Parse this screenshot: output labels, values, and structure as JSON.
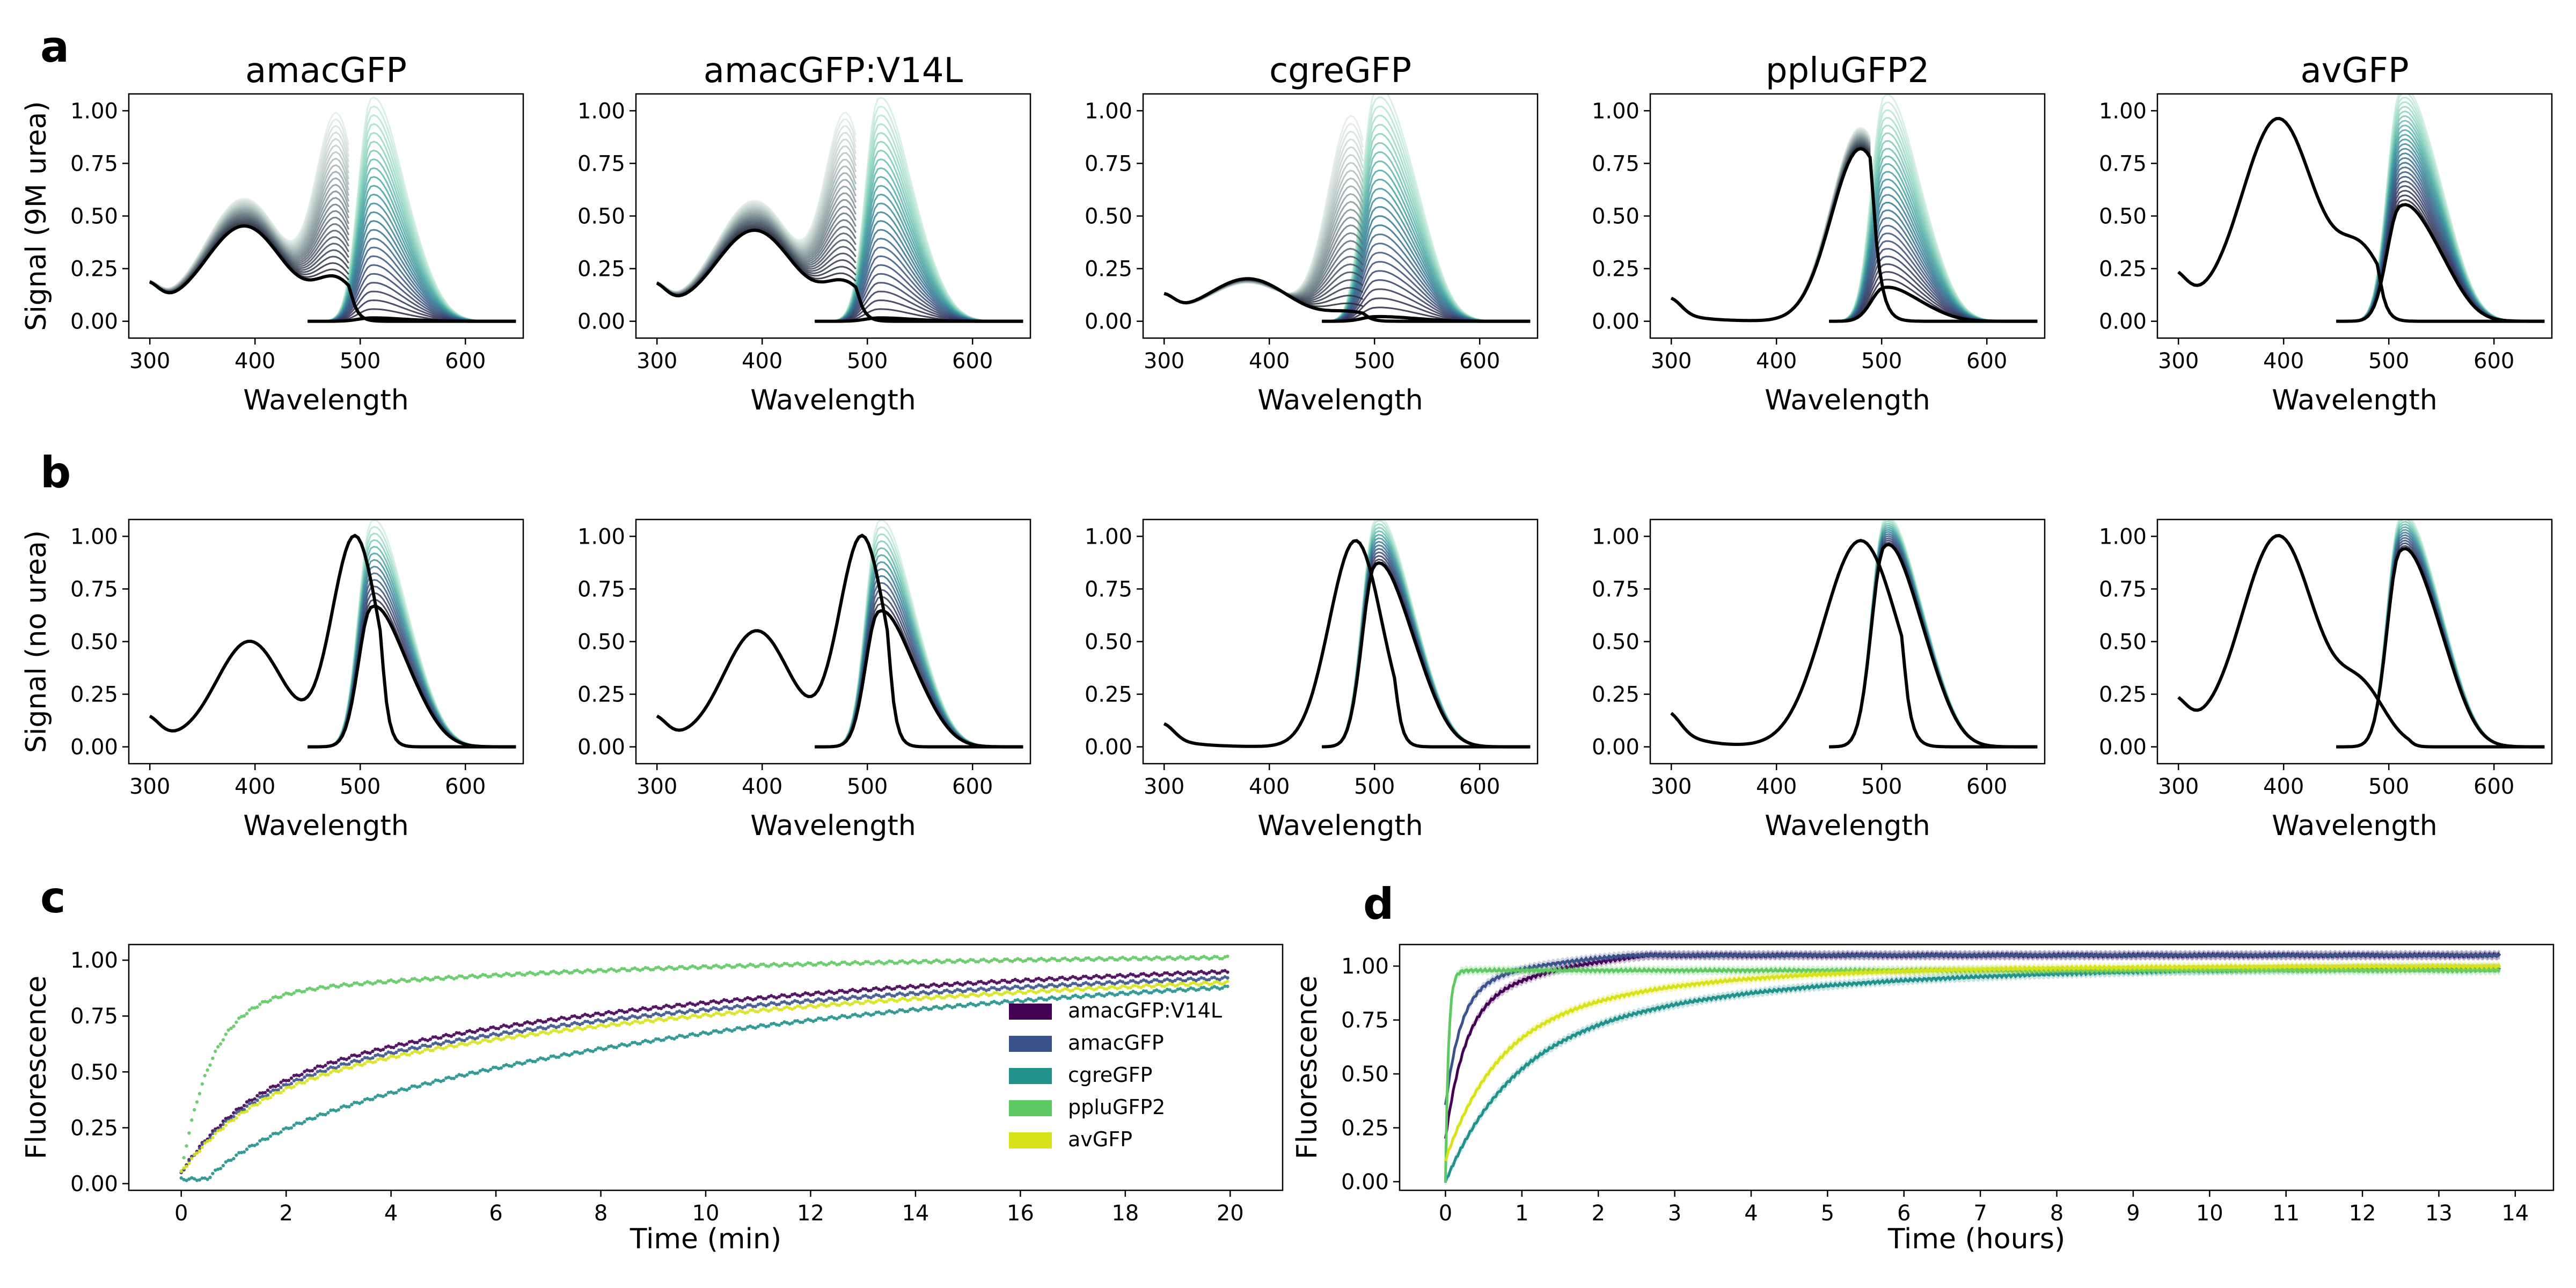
{
  "panel_letters": [
    "a",
    "b",
    "c",
    "d"
  ],
  "colors": {
    "amacGFP:V14L": "#440154",
    "amacGFP": "#3b528b",
    "cgreGFP": "#21918c",
    "ppluGFP2": "#5ec962",
    "avGFP": "#d8e219",
    "final_trace": "#000000",
    "colormap": "mako_r"
  },
  "chart_data": [
    {
      "panel": "a",
      "type": "line",
      "title": "amacGFP",
      "xlabel": "Wavelength",
      "ylabel": "Signal (9M urea)",
      "xlim": [
        280,
        655
      ],
      "ylim": [
        -0.08,
        1.08
      ],
      "xticks": [
        300,
        400,
        500,
        600
      ],
      "yticks": [
        0.0,
        0.25,
        0.5,
        0.75,
        1.0
      ],
      "ytick_labels": [
        "0.00",
        "0.25",
        "0.50",
        "0.75",
        "1.00"
      ],
      "absorbance_peaks": [
        {
          "wl": 390,
          "start": 0.58,
          "end": 0.45,
          "w": 38
        },
        {
          "wl": 478,
          "start": 0.95,
          "end": 0.18,
          "w": 20
        }
      ],
      "absorbance_baseline": 0.1,
      "emission": {
        "peak_wl": 510,
        "start": 1.0,
        "end": 0.015,
        "shoulder": 0.25
      }
    },
    {
      "panel": "a",
      "type": "line",
      "title": "amacGFP:V14L",
      "xlabel": "Wavelength",
      "ylabel": "",
      "xlim": [
        280,
        655
      ],
      "ylim": [
        -0.08,
        1.08
      ],
      "xticks": [
        300,
        400,
        500,
        600
      ],
      "yticks": [
        0.0,
        0.25,
        0.5,
        0.75,
        1.0
      ],
      "ytick_labels": [
        "0.00",
        "0.25",
        "0.50",
        "0.75",
        "1.00"
      ],
      "absorbance_peaks": [
        {
          "wl": 393,
          "start": 0.57,
          "end": 0.43,
          "w": 38
        },
        {
          "wl": 480,
          "start": 0.95,
          "end": 0.16,
          "w": 20
        }
      ],
      "absorbance_baseline": 0.1,
      "emission": {
        "peak_wl": 510,
        "start": 1.0,
        "end": 0.015,
        "shoulder": 0.25
      }
    },
    {
      "panel": "a",
      "type": "line",
      "title": "cgreGFP",
      "xlabel": "Wavelength",
      "ylabel": "",
      "xlim": [
        280,
        655
      ],
      "ylim": [
        -0.08,
        1.08
      ],
      "xticks": [
        300,
        400,
        500,
        600
      ],
      "yticks": [
        0.0,
        0.25,
        0.5,
        0.75,
        1.0
      ],
      "ytick_labels": [
        "0.00",
        "0.25",
        "0.50",
        "0.75",
        "1.00"
      ],
      "absorbance_peaks": [
        {
          "wl": 380,
          "start": 0.18,
          "end": 0.2,
          "w": 38
        },
        {
          "wl": 478,
          "start": 0.97,
          "end": 0.04,
          "w": 22
        }
      ],
      "absorbance_baseline": 0.05,
      "emission": {
        "peak_wl": 500,
        "start": 1.0,
        "end": 0.02,
        "shoulder": 0.4
      }
    },
    {
      "panel": "a",
      "type": "line",
      "title": "ppluGFP2",
      "xlabel": "Wavelength",
      "ylabel": "",
      "xlim": [
        280,
        655
      ],
      "ylim": [
        -0.08,
        1.08
      ],
      "xticks": [
        300,
        400,
        500,
        600
      ],
      "yticks": [
        0.0,
        0.25,
        0.5,
        0.75,
        1.0
      ],
      "ytick_labels": [
        "0.00",
        "0.25",
        "0.50",
        "0.75",
        "1.00"
      ],
      "absorbance_peaks": [
        {
          "wl": 480,
          "start": 0.92,
          "end": 0.82,
          "w": 28
        }
      ],
      "absorbance_baseline": 0.05,
      "emission": {
        "peak_wl": 502,
        "start": 1.0,
        "end": 0.15,
        "shoulder": 0.3
      }
    },
    {
      "panel": "a",
      "type": "line",
      "title": "avGFP",
      "xlabel": "Wavelength",
      "ylabel": "",
      "xlim": [
        280,
        655
      ],
      "ylim": [
        -0.08,
        1.08
      ],
      "xticks": [
        300,
        400,
        500,
        600
      ],
      "yticks": [
        0.0,
        0.25,
        0.5,
        0.75,
        1.0
      ],
      "ytick_labels": [
        "0.00",
        "0.25",
        "0.50",
        "0.75",
        "1.00"
      ],
      "absorbance_peaks": [
        {
          "wl": 395,
          "start": 0.96,
          "end": 0.96,
          "w": 35
        },
        {
          "wl": 475,
          "start": 0.3,
          "end": 0.3,
          "w": 22
        }
      ],
      "absorbance_baseline": 0.15,
      "emission": {
        "peak_wl": 510,
        "start": 1.0,
        "end": 0.5,
        "shoulder": 0.4
      }
    },
    {
      "panel": "b",
      "type": "line",
      "title": "",
      "xlabel": "Wavelength",
      "ylabel": "Signal (no urea)",
      "xlim": [
        280,
        655
      ],
      "ylim": [
        -0.08,
        1.08
      ],
      "xticks": [
        300,
        400,
        500,
        600
      ],
      "yticks": [
        0.0,
        0.25,
        0.5,
        0.75,
        1.0
      ],
      "ytick_labels": [
        "0.00",
        "0.25",
        "0.50",
        "0.75",
        "1.00"
      ],
      "absorbance_peaks": [
        {
          "wl": 395,
          "start": 0.5,
          "end": 0.5,
          "w": 32
        },
        {
          "wl": 495,
          "start": 1.0,
          "end": 1.0,
          "w": 22
        }
      ],
      "absorbance_baseline": 0.08,
      "emission": {
        "peak_wl": 510,
        "start": 1.0,
        "end": 0.62,
        "shoulder": 0.3
      }
    },
    {
      "panel": "b",
      "type": "line",
      "title": "",
      "xlabel": "Wavelength",
      "ylabel": "",
      "xlim": [
        280,
        655
      ],
      "ylim": [
        -0.08,
        1.08
      ],
      "xticks": [
        300,
        400,
        500,
        600
      ],
      "yticks": [
        0.0,
        0.25,
        0.5,
        0.75,
        1.0
      ],
      "ytick_labels": [
        "0.00",
        "0.25",
        "0.50",
        "0.75",
        "1.00"
      ],
      "absorbance_peaks": [
        {
          "wl": 395,
          "start": 0.55,
          "end": 0.55,
          "w": 32
        },
        {
          "wl": 495,
          "start": 1.0,
          "end": 1.0,
          "w": 22
        }
      ],
      "absorbance_baseline": 0.08,
      "emission": {
        "peak_wl": 510,
        "start": 1.0,
        "end": 0.6,
        "shoulder": 0.3
      }
    },
    {
      "panel": "b",
      "type": "line",
      "title": "",
      "xlabel": "Wavelength",
      "ylabel": "",
      "xlim": [
        280,
        655
      ],
      "ylim": [
        -0.08,
        1.08
      ],
      "xticks": [
        300,
        400,
        500,
        600
      ],
      "yticks": [
        0.0,
        0.25,
        0.5,
        0.75,
        1.0
      ],
      "ytick_labels": [
        "0.00",
        "0.25",
        "0.50",
        "0.75",
        "1.00"
      ],
      "absorbance_peaks": [
        {
          "wl": 482,
          "start": 0.98,
          "end": 0.98,
          "w": 25
        }
      ],
      "absorbance_baseline": 0.05,
      "emission": {
        "peak_wl": 500,
        "start": 1.0,
        "end": 0.8,
        "shoulder": 0.35
      }
    },
    {
      "panel": "b",
      "type": "line",
      "title": "",
      "xlabel": "Wavelength",
      "ylabel": "",
      "xlim": [
        280,
        655
      ],
      "ylim": [
        -0.08,
        1.08
      ],
      "xticks": [
        300,
        400,
        500,
        600
      ],
      "yticks": [
        0.0,
        0.25,
        0.5,
        0.75,
        1.0
      ],
      "ytick_labels": [
        "0.00",
        "0.25",
        "0.50",
        "0.75",
        "1.00"
      ],
      "absorbance_peaks": [
        {
          "wl": 480,
          "start": 0.98,
          "end": 0.98,
          "w": 35
        }
      ],
      "absorbance_baseline": 0.1,
      "emission": {
        "peak_wl": 502,
        "start": 1.0,
        "end": 0.88,
        "shoulder": 0.35
      }
    },
    {
      "panel": "b",
      "type": "line",
      "title": "",
      "xlabel": "Wavelength",
      "ylabel": "",
      "xlim": [
        280,
        655
      ],
      "ylim": [
        -0.08,
        1.08
      ],
      "xticks": [
        300,
        400,
        500,
        600
      ],
      "yticks": [
        0.0,
        0.25,
        0.5,
        0.75,
        1.0
      ],
      "ytick_labels": [
        "0.00",
        "0.25",
        "0.50",
        "0.75",
        "1.00"
      ],
      "absorbance_peaks": [
        {
          "wl": 395,
          "start": 1.0,
          "end": 1.0,
          "w": 35
        },
        {
          "wl": 475,
          "start": 0.25,
          "end": 0.25,
          "w": 22
        }
      ],
      "absorbance_baseline": 0.15,
      "emission": {
        "peak_wl": 510,
        "start": 1.0,
        "end": 0.85,
        "shoulder": 0.4
      }
    },
    {
      "panel": "c",
      "type": "scatter",
      "title": "",
      "xlabel": "Time (min)",
      "ylabel": "Fluorescence",
      "xlim": [
        -1,
        21
      ],
      "ylim": [
        -0.03,
        1.07
      ],
      "xticks": [
        0,
        2,
        4,
        6,
        8,
        10,
        12,
        14,
        16,
        18,
        20
      ],
      "yticks": [
        0.0,
        0.25,
        0.5,
        0.75,
        1.0
      ],
      "ytick_labels": [
        "0.00",
        "0.25",
        "0.50",
        "0.75",
        "1.00"
      ],
      "legend_position": "right",
      "series": [
        {
          "name": "amacGFP:V14L",
          "start": 0.05,
          "a1": 0.38,
          "k1": 0.8,
          "a2": 0.6,
          "k2": 0.1,
          "lag": 0
        },
        {
          "name": "amacGFP",
          "start": 0.05,
          "a1": 0.36,
          "k1": 0.8,
          "a2": 0.6,
          "k2": 0.095,
          "lag": 0
        },
        {
          "name": "cgreGFP",
          "start": 0.02,
          "a1": 0.15,
          "k1": 0.5,
          "a2": 0.85,
          "k2": 0.09,
          "lag": 0.8
        },
        {
          "name": "ppluGFP2",
          "start": 0.05,
          "a1": 0.78,
          "k1": 1.7,
          "a2": 0.2,
          "k2": 0.12,
          "lag": 0
        },
        {
          "name": "avGFP",
          "start": 0.05,
          "a1": 0.36,
          "k1": 0.75,
          "a2": 0.6,
          "k2": 0.085,
          "lag": 0
        }
      ]
    },
    {
      "panel": "d",
      "type": "line",
      "title": "",
      "xlabel": "Time (hours)",
      "ylabel": "Fluorescence",
      "xlim": [
        -0.6,
        14.5
      ],
      "ylim": [
        -0.04,
        1.1
      ],
      "xticks": [
        0,
        1,
        2,
        3,
        4,
        5,
        6,
        7,
        8,
        9,
        10,
        11,
        12,
        13,
        14
      ],
      "yticks": [
        0.0,
        0.25,
        0.5,
        0.75,
        1.0
      ],
      "ytick_labels": [
        "0.00",
        "0.25",
        "0.50",
        "0.75",
        "1.00"
      ],
      "series": [
        {
          "name": "amacGFP:V14L",
          "start": 0.2,
          "a1": 0.6,
          "k1": 4,
          "a2": 0.26,
          "k2": 0.7,
          "final": 1.0,
          "overshoot": 0.05,
          "xmax": 13.8
        },
        {
          "name": "amacGFP",
          "start": 0.35,
          "a1": 0.55,
          "k1": 5,
          "a2": 0.15,
          "k2": 0.7,
          "final": 1.0,
          "overshoot": 0.05,
          "xmax": 13.8
        },
        {
          "name": "cgreGFP",
          "start": 0.0,
          "a1": 0.6,
          "k1": 1.2,
          "a2": 0.4,
          "k2": 0.3,
          "final": 0.99,
          "overshoot": 0,
          "xmax": 13.8
        },
        {
          "name": "ppluGFP2",
          "start": 0.0,
          "a1": 0.98,
          "k1": 25,
          "a2": 0.0,
          "k2": 1,
          "final": 0.99,
          "overshoot": 0,
          "xmax": 13.8
        },
        {
          "name": "avGFP",
          "start": 0.1,
          "a1": 0.55,
          "k1": 1.6,
          "a2": 0.35,
          "k2": 0.45,
          "final": 1.0,
          "overshoot": 0,
          "xmax": 13.8
        }
      ]
    }
  ]
}
